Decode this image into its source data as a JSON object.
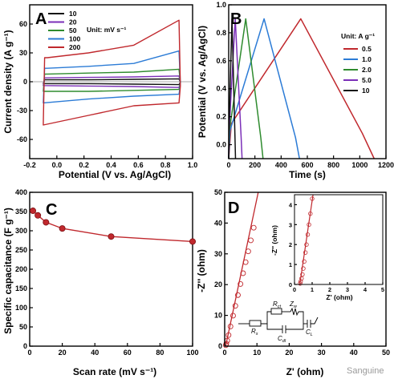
{
  "watermark": "Sanguine",
  "chart_data": [
    {
      "id": "A",
      "type": "line",
      "panel_label": "A",
      "xlabel": "Potential (V vs. Ag/AgCl)",
      "ylabel": "Current density (A g⁻¹)",
      "xlim": [
        -0.2,
        1.0
      ],
      "ylim": [
        -80,
        80
      ],
      "xticks": [
        -0.2,
        0.0,
        0.2,
        0.4,
        0.6,
        0.8,
        1.0
      ],
      "xtick_labels": [
        "-0.2",
        "0.0",
        "0.2",
        "0.4",
        "0.6",
        "0.8",
        "1.0"
      ],
      "yticks": [
        -60,
        -30,
        0,
        30,
        60
      ],
      "ytick_labels": [
        "-60",
        "-30",
        "0",
        "30",
        "60"
      ],
      "legend_title": "Unit: mV s⁻¹",
      "legend_position": "top-left",
      "series": [
        {
          "name": "10",
          "color": "#111111",
          "x_range": [
            -0.1,
            0.9
          ],
          "upper": [
            2,
            2,
            2.5,
            3
          ],
          "lower": [
            -2,
            -2,
            -2.5,
            -3
          ]
        },
        {
          "name": "20",
          "color": "#7b2fb8",
          "x_range": [
            -0.1,
            0.9
          ],
          "upper": [
            4,
            4.5,
            5,
            6
          ],
          "lower": [
            -4,
            -4.5,
            -5,
            -6
          ]
        },
        {
          "name": "50",
          "color": "#2e8b2e",
          "x_range": [
            -0.1,
            0.9
          ],
          "upper": [
            8,
            9,
            10,
            13
          ],
          "lower": [
            -10,
            -10,
            -9,
            -8
          ]
        },
        {
          "name": "100",
          "color": "#2b7bd6",
          "x_range": [
            -0.1,
            0.9
          ],
          "upper": [
            14,
            16,
            19,
            32
          ],
          "lower": [
            -22,
            -18,
            -15,
            -13
          ]
        },
        {
          "name": "200",
          "color": "#c0282d",
          "x_range": [
            -0.1,
            0.9
          ],
          "upper": [
            25,
            30,
            38,
            64
          ],
          "lower": [
            -45,
            -35,
            -25,
            -22
          ]
        }
      ]
    },
    {
      "id": "B",
      "type": "line",
      "panel_label": "B",
      "xlabel": "Time (s)",
      "ylabel": "Potential (V vs. Ag/AgCl)",
      "xlim": [
        0,
        1200
      ],
      "ylim": [
        -0.1,
        1.0
      ],
      "xticks": [
        0,
        200,
        400,
        600,
        800,
        1000,
        1200
      ],
      "xtick_labels": [
        "0",
        "200",
        "400",
        "600",
        "800",
        "1000",
        "1200"
      ],
      "yticks": [
        0.0,
        0.2,
        0.4,
        0.6,
        0.8,
        1.0
      ],
      "ytick_labels": [
        "0.0",
        "0.2",
        "0.4",
        "0.6",
        "0.8",
        "1.0"
      ],
      "legend_title": "Unit: A g⁻¹",
      "legend_position": "right",
      "series": [
        {
          "name": "0.5",
          "color": "#c0282d",
          "points": [
            [
              0,
              -0.1
            ],
            [
              20,
              0.15
            ],
            [
              550,
              0.9
            ],
            [
              1020,
              0.08
            ],
            [
              1110,
              -0.1
            ]
          ]
        },
        {
          "name": "1.0",
          "color": "#2b7bd6",
          "points": [
            [
              0,
              -0.1
            ],
            [
              10,
              0.1
            ],
            [
              270,
              0.9
            ],
            [
              510,
              0.05
            ],
            [
              540,
              -0.1
            ]
          ]
        },
        {
          "name": "2.0",
          "color": "#2e8b2e",
          "points": [
            [
              0,
              -0.1
            ],
            [
              5,
              0.1
            ],
            [
              130,
              0.9
            ],
            [
              245,
              0.05
            ],
            [
              262,
              -0.1
            ]
          ]
        },
        {
          "name": "5.0",
          "color": "#7b2fb8",
          "points": [
            [
              0,
              -0.1
            ],
            [
              3,
              0.1
            ],
            [
              50,
              0.9
            ],
            [
              95,
              0.05
            ],
            [
              102,
              -0.1
            ]
          ]
        },
        {
          "name": "10",
          "color": "#111111",
          "points": [
            [
              0,
              -0.1
            ],
            [
              2,
              0.1
            ],
            [
              25,
              0.9
            ],
            [
              48,
              0.05
            ],
            [
              52,
              -0.1
            ]
          ]
        }
      ]
    },
    {
      "id": "C",
      "type": "line",
      "panel_label": "C",
      "xlabel": "Scan rate (mV s⁻¹)",
      "ylabel": "Specific capacitance (F g⁻¹)",
      "xlim": [
        0,
        100
      ],
      "ylim": [
        0,
        400
      ],
      "xticks": [
        0,
        20,
        40,
        60,
        80,
        100
      ],
      "xtick_labels": [
        "0",
        "20",
        "40",
        "60",
        "80",
        "100"
      ],
      "yticks": [
        0,
        50,
        100,
        150,
        200,
        250,
        300,
        350,
        400
      ],
      "ytick_labels": [
        "0",
        "50",
        "100",
        "150",
        "200",
        "250",
        "300",
        "350",
        "400"
      ],
      "series": [
        {
          "color": "#c0282d",
          "x": [
            2,
            5,
            10,
            20,
            50,
            100
          ],
          "y": [
            352,
            340,
            322,
            306,
            285,
            272
          ]
        }
      ]
    },
    {
      "id": "D",
      "type": "scatter",
      "panel_label": "D",
      "xlabel": "Z' (ohm)",
      "ylabel": "-Z'' (ohm)",
      "xlim": [
        0,
        50
      ],
      "ylim": [
        0,
        50
      ],
      "xticks": [
        0,
        10,
        20,
        30,
        40,
        50
      ],
      "xtick_labels": [
        "0",
        "10",
        "20",
        "30",
        "40",
        "50"
      ],
      "yticks": [
        0,
        10,
        20,
        30,
        40,
        50
      ],
      "ytick_labels": [
        "0",
        "10",
        "20",
        "30",
        "40",
        "50"
      ],
      "series": [
        {
          "color": "#c0282d",
          "x": [
            0.35,
            0.5,
            0.8,
            1.2,
            1.8,
            2.6,
            3.3,
            4.1,
            4.9,
            5.7,
            6.5,
            7.3,
            8.1,
            9.0
          ],
          "y": [
            0.3,
            0.8,
            1.8,
            3.6,
            6.4,
            9.9,
            13.1,
            16.6,
            20.2,
            23.7,
            27.3,
            30.8,
            34.4,
            38.5
          ],
          "fit_line": [
            [
              0.3,
              0
            ],
            [
              10.4,
              50
            ]
          ]
        }
      ],
      "inset": {
        "xlabel": "Z' (ohm)",
        "ylabel": "-Z'' (ohm)",
        "xlim": [
          0,
          5
        ],
        "ylim": [
          0,
          4.5
        ],
        "xticks": [
          0,
          1,
          2,
          3,
          4,
          5
        ],
        "xtick_labels": [
          "0",
          "1",
          "2",
          "3",
          "4",
          "5"
        ],
        "yticks": [
          0,
          1,
          2,
          3,
          4
        ],
        "ytick_labels": [
          "0",
          "1",
          "2",
          "3",
          "4"
        ],
        "x": [
          0.32,
          0.35,
          0.4,
          0.45,
          0.5,
          0.55,
          0.62,
          0.68,
          0.75,
          0.82,
          0.9,
          1.0
        ],
        "y": [
          0.05,
          0.15,
          0.3,
          0.5,
          0.8,
          1.15,
          1.6,
          2.0,
          2.5,
          3.0,
          3.55,
          4.3
        ],
        "fit_line": [
          [
            0.3,
            0
          ],
          [
            1.05,
            4.5
          ]
        ]
      },
      "circuit": {
        "labels": [
          "Rct",
          "Zw",
          "Rs",
          "Cdl",
          "CL"
        ],
        "label_parts": [
          [
            "R",
            "ct"
          ],
          [
            "Z",
            "w"
          ],
          [
            "R",
            "s"
          ],
          [
            "C",
            "dl"
          ],
          [
            "C",
            "L"
          ]
        ]
      }
    }
  ]
}
